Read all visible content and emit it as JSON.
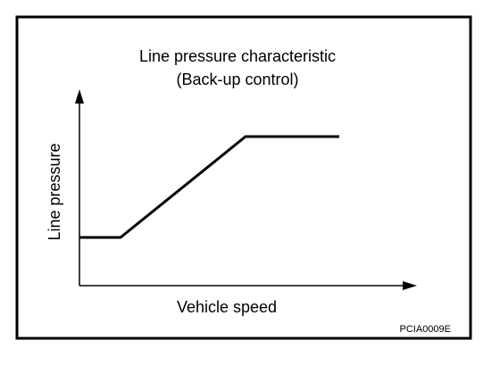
{
  "title": [
    "Line pressure characteristic",
    "(Back-up control)"
  ],
  "y_axis_label": "Line pressure",
  "x_axis_label": "Vehicle speed",
  "figure_id": "PCIA0009E"
}
